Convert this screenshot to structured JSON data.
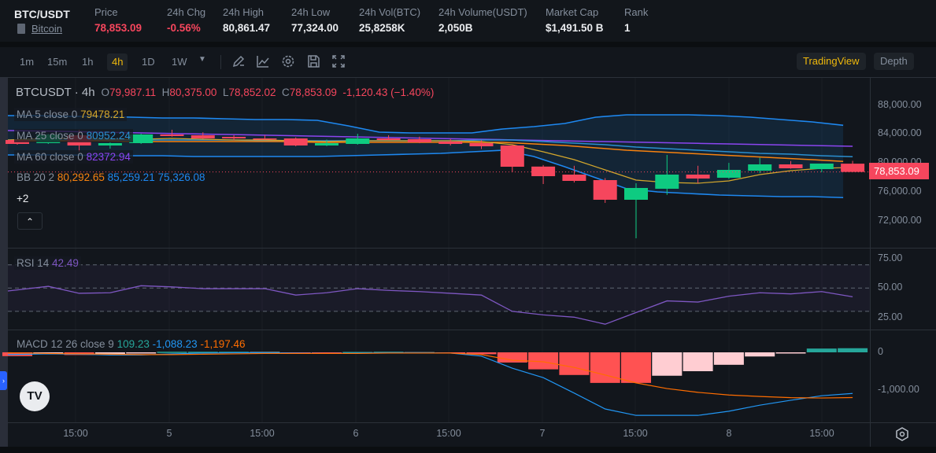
{
  "header": {
    "pair": "BTC/USDT",
    "coin_link": "Bitcoin",
    "stats": [
      {
        "label": "Price",
        "value": "78,853.09",
        "tone": "red"
      },
      {
        "label": "24h Chg",
        "value": "-0.56%",
        "tone": "red"
      },
      {
        "label": "24h High",
        "value": "80,861.47"
      },
      {
        "label": "24h Low",
        "value": "77,324.00"
      },
      {
        "label": "24h Vol(BTC)",
        "value": "25,8258K"
      },
      {
        "label": "24h Volume(USDT)",
        "value": "2,050B"
      },
      {
        "label": "Market Cap",
        "value": "$1,491.50 B"
      },
      {
        "label": "Rank",
        "value": "1"
      }
    ]
  },
  "toolbar": {
    "intervals": [
      "1m",
      "15m",
      "1h",
      "4h",
      "1D",
      "1W"
    ],
    "active": "4h",
    "tradingview": "TradingView",
    "depth": "Depth"
  },
  "legend": {
    "symbol": "BTCUSDT",
    "interval": "· 4h",
    "o_k": "O",
    "o": "79,987.11",
    "h_k": "H",
    "h": "80,375.00",
    "l_k": "L",
    "l": "78,852.02",
    "c_k": "C",
    "c": "78,853.09",
    "change": "-1,120.43 (−1.40%)",
    "ma5": {
      "label": "MA 5 close 0",
      "value": "79478.21"
    },
    "ma25": {
      "label": "MA 25 close 0",
      "value": "80952.24"
    },
    "ma60": {
      "label": "MA 60 close 0",
      "value": "82372.94"
    },
    "bb": {
      "label": "BB 20 2",
      "mid": "80,292.65",
      "upper": "85,259.21",
      "lower": "75,326.08"
    },
    "more": "+2",
    "rsi": {
      "label": "RSI 14",
      "value": "42.49"
    },
    "macd": {
      "label": "MACD 12 26 close 9",
      "hist": "109.23",
      "macd": "-1,088.23",
      "signal": "-1,197.46"
    }
  },
  "axes": {
    "price_ticks": [
      "88,000.00",
      "84,000.00",
      "80,000.00",
      "76,000.00",
      "72,000.00"
    ],
    "last_price": "78,853.09",
    "rsi_ticks": [
      "75.00",
      "50.00",
      "25.00"
    ],
    "macd_ticks": [
      "0",
      "-1,000.00"
    ],
    "time_ticks": [
      "15:00",
      "5",
      "15:00",
      "6",
      "15:00",
      "7",
      "15:00",
      "8",
      "15:00"
    ]
  },
  "colors": {
    "up": "#0ecb81",
    "down": "#f6465d",
    "ma5": "#d4a72c",
    "ma25": "#2a8fd0",
    "ma60": "#8b45f0",
    "bb": "#1e88f0",
    "bb_mid": "#f7820f",
    "rsi": "#7e57c2",
    "macd": "#2196f3",
    "signal": "#ff6d00"
  },
  "chart_data": {
    "type": "candlestick",
    "title": "BTCUSDT 4h",
    "ylim": [
      68000,
      90000
    ],
    "candles": [
      [
        83244,
        83350,
        82600,
        82703
      ],
      [
        82811,
        84100,
        82700,
        84000
      ],
      [
        83892,
        84649,
        81622,
        82486
      ],
      [
        82486,
        82900,
        82054,
        82811
      ],
      [
        82811,
        84100,
        82700,
        84000
      ],
      [
        84000,
        84650,
        83700,
        83784
      ],
      [
        83892,
        84300,
        83400,
        83460
      ],
      [
        83676,
        83900,
        83200,
        83460
      ],
      [
        83460,
        83900,
        83300,
        83352
      ],
      [
        83460,
        83600,
        82380,
        82486
      ],
      [
        82486,
        83300,
        82400,
        82811
      ],
      [
        82703,
        84100,
        82600,
        83460
      ],
      [
        83460,
        83900,
        83250,
        83244
      ],
      [
        83352,
        83700,
        82800,
        82919
      ],
      [
        83028,
        83400,
        82500,
        82703
      ],
      [
        82811,
        83200,
        82000,
        82378
      ],
      [
        82486,
        82600,
        78811,
        79567
      ],
      [
        79590,
        79800,
        77190,
        78270
      ],
      [
        78487,
        79700,
        77400,
        77622
      ],
      [
        77730,
        78000,
        74600,
        75028
      ],
      [
        75028,
        77300,
        69731,
        76649
      ],
      [
        76541,
        81190,
        75700,
        78487
      ],
      [
        78487,
        79700,
        77300,
        77946
      ],
      [
        78054,
        80100,
        77900,
        79136
      ],
      [
        79027,
        80800,
        78700,
        79892
      ],
      [
        79892,
        80350,
        79300,
        79352
      ],
      [
        79244,
        80000,
        78811,
        80000
      ],
      [
        79987,
        80375,
        78852,
        78853
      ]
    ],
    "ma5": [
      83244,
      83460,
      83460,
      83352,
      83352,
      83460,
      83352,
      83244,
      83244,
      83136,
      83028,
      83136,
      83136,
      83136,
      83136,
      83028,
      82595,
      81622,
      80541,
      79136,
      77730,
      77406,
      77298,
      77622,
      78487,
      79028,
      79352,
      79478
    ],
    "ma25": [
      83244,
      83244,
      83244,
      83244,
      83244,
      83244,
      83244,
      83244,
      83136,
      83136,
      83136,
      83136,
      83136,
      83136,
      83136,
      83244,
      83244,
      83028,
      82811,
      82595,
      82271,
      82055,
      81838,
      81622,
      81406,
      81298,
      81082,
      80952
    ],
    "ma60": [
      84541,
      84461,
      84381,
      84301,
      84221,
      84141,
      84061,
      83981,
      83901,
      83821,
      83741,
      83661,
      83581,
      83501,
      83421,
      83341,
      83261,
      83181,
      83101,
      83021,
      82941,
      82861,
      82781,
      82701,
      82621,
      82541,
      82461,
      82373
    ],
    "bb_upper": [
      86595,
      86595,
      86487,
      86487,
      86378,
      86270,
      86270,
      86162,
      86054,
      86054,
      85946,
      85189,
      84324,
      84216,
      84216,
      84216,
      84757,
      85081,
      85514,
      86378,
      86703,
      86703,
      86703,
      86595,
      86378,
      86054,
      85730,
      85259
    ],
    "bb_mid": [
      83136,
      83136,
      83136,
      83136,
      83028,
      83028,
      83028,
      83028,
      83028,
      83028,
      82919,
      82919,
      82919,
      82919,
      82919,
      82919,
      82919,
      82703,
      82487,
      82162,
      81838,
      81622,
      81406,
      81190,
      80973,
      80757,
      80541,
      80293
    ],
    "bb_lower": [
      81190,
      81190,
      81190,
      81082,
      81082,
      81082,
      80973,
      80973,
      80973,
      80973,
      80973,
      81082,
      81190,
      81298,
      81406,
      81622,
      81838,
      80973,
      79568,
      78055,
      76541,
      76109,
      75893,
      75676,
      75568,
      75460,
      75460,
      75326
    ],
    "rsi": [
      47.5,
      51.5,
      45.5,
      46,
      52,
      51,
      49.5,
      49.5,
      49.5,
      44,
      46,
      49.5,
      48,
      47,
      45.5,
      44,
      30,
      27,
      25,
      19,
      29,
      39,
      38,
      43,
      46,
      45,
      47,
      42.49
    ],
    "macd": [
      -60,
      -40,
      -50,
      -70,
      -70,
      -40,
      -20,
      -10,
      -10,
      -20,
      -30,
      -20,
      -10,
      -10,
      -20,
      -100,
      -420,
      -670,
      -1080,
      -1500,
      -1670,
      -1670,
      -1670,
      -1560,
      -1400,
      -1270,
      -1150,
      -1088.23
    ],
    "signal": [
      -10,
      -30,
      -40,
      -50,
      -60,
      -60,
      -50,
      -40,
      -30,
      -30,
      -30,
      -30,
      -20,
      -20,
      -20,
      -60,
      -210,
      -250,
      -400,
      -600,
      -810,
      -960,
      -1060,
      -1130,
      -1170,
      -1200,
      -1210,
      -1197.46
    ],
    "hist": [
      -100,
      -40,
      -70,
      -60,
      -10,
      15,
      15,
      15,
      10,
      -10,
      -10,
      10,
      15,
      5,
      -10,
      -50,
      -270,
      -450,
      -600,
      -810,
      -810,
      -620,
      -500,
      -330,
      -110,
      -20,
      100,
      109.23
    ]
  }
}
